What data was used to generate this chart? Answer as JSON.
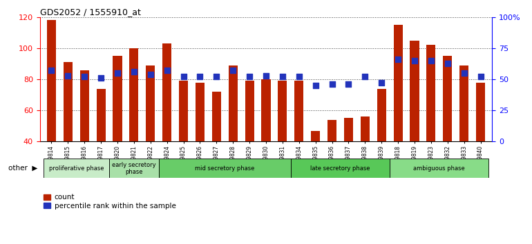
{
  "title": "GDS2052 / 1555910_at",
  "samples": [
    "GSM109814",
    "GSM109815",
    "GSM109816",
    "GSM109817",
    "GSM109820",
    "GSM109821",
    "GSM109822",
    "GSM109824",
    "GSM109825",
    "GSM109826",
    "GSM109827",
    "GSM109828",
    "GSM109829",
    "GSM109830",
    "GSM109831",
    "GSM109834",
    "GSM109835",
    "GSM109836",
    "GSM109837",
    "GSM109838",
    "GSM109839",
    "GSM109818",
    "GSM109819",
    "GSM109823",
    "GSM109832",
    "GSM109833",
    "GSM109840"
  ],
  "count": [
    118,
    91,
    86,
    74,
    95,
    100,
    89,
    103,
    79,
    78,
    72,
    89,
    79,
    80,
    79,
    79,
    47,
    54,
    55,
    56,
    74,
    115,
    105,
    102,
    95,
    89,
    78
  ],
  "percentile": [
    57,
    53,
    52,
    51,
    55,
    56,
    54,
    57,
    52,
    52,
    52,
    57,
    52,
    53,
    52,
    52,
    45,
    46,
    46,
    52,
    47,
    66,
    65,
    65,
    63,
    55,
    52
  ],
  "bar_color": "#bb2200",
  "dot_color": "#2233bb",
  "ylim_left": [
    40,
    120
  ],
  "ylim_right": [
    0,
    100
  ],
  "yticks_left": [
    40,
    60,
    80,
    100,
    120
  ],
  "yticks_right": [
    0,
    25,
    50,
    75,
    100
  ],
  "ytick_labels_right": [
    "0",
    "25",
    "50",
    "75",
    "100%"
  ],
  "phases": [
    {
      "label": "proliferative phase",
      "start": 0,
      "end": 4,
      "color": "#c8ecc8"
    },
    {
      "label": "early secretory\nphase",
      "start": 4,
      "end": 7,
      "color": "#a8e0a8"
    },
    {
      "label": "mid secretory phase",
      "start": 7,
      "end": 15,
      "color": "#68cc68"
    },
    {
      "label": "late secretory phase",
      "start": 15,
      "end": 21,
      "color": "#58c858"
    },
    {
      "label": "ambiguous phase",
      "start": 21,
      "end": 27,
      "color": "#88dc88"
    }
  ],
  "legend_count_label": "count",
  "legend_pct_label": "percentile rank within the sample",
  "bar_width": 0.55,
  "background_color": "#ffffff",
  "grid_color": "#444444"
}
